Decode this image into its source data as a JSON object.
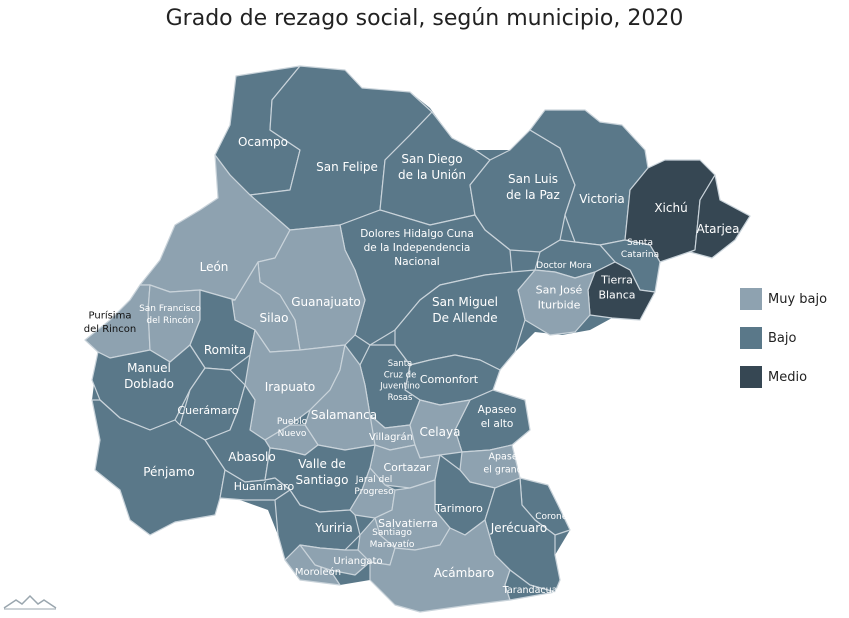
{
  "title": "Grado de rezago social, según municipio, 2020",
  "colors": {
    "muy_bajo": "#8ea2b0",
    "bajo": "#5a7889",
    "medio": "#364753",
    "border": "#c9d3da",
    "background": "#ffffff"
  },
  "legend": [
    {
      "label": "Muy bajo",
      "key": "muy_bajo"
    },
    {
      "label": "Bajo",
      "key": "bajo"
    },
    {
      "label": "Medio",
      "key": "medio"
    }
  ],
  "municipios": [
    {
      "id": "ocampo",
      "lines": [
        "Ocampo"
      ],
      "level": "bajo"
    },
    {
      "id": "san-felipe",
      "lines": [
        "San Felipe"
      ],
      "level": "bajo"
    },
    {
      "id": "san-diego",
      "lines": [
        "San Diego",
        "de la Unión"
      ],
      "level": "bajo"
    },
    {
      "id": "san-luis",
      "lines": [
        "San Luis",
        "de la Paz"
      ],
      "level": "bajo"
    },
    {
      "id": "victoria",
      "lines": [
        "Victoria"
      ],
      "level": "bajo"
    },
    {
      "id": "xichu",
      "lines": [
        "Xichú"
      ],
      "level": "medio"
    },
    {
      "id": "atarjea",
      "lines": [
        "Atarjea"
      ],
      "level": "medio"
    },
    {
      "id": "leon",
      "lines": [
        "León"
      ],
      "level": "muy_bajo"
    },
    {
      "id": "dolores",
      "lines": [
        "Dolores Hidalgo Cuna",
        "de la Independencia",
        "Nacional"
      ],
      "level": "bajo"
    },
    {
      "id": "santa-catarina",
      "lines": [
        "Santa",
        "Catarina"
      ],
      "level": "bajo"
    },
    {
      "id": "doctor-mora",
      "lines": [
        "Doctor Mora"
      ],
      "level": "bajo"
    },
    {
      "id": "tierra-blanca",
      "lines": [
        "Tierra",
        "Blanca"
      ],
      "level": "medio"
    },
    {
      "id": "san-jose",
      "lines": [
        "San José",
        "Iturbide"
      ],
      "level": "muy_bajo"
    },
    {
      "id": "purisima",
      "lines": [
        "Purísima",
        "del Rincon"
      ],
      "level": "muy_bajo"
    },
    {
      "id": "san-francisco",
      "lines": [
        "San Francisco",
        "del Rincón"
      ],
      "level": "muy_bajo"
    },
    {
      "id": "guanajuato",
      "lines": [
        "Guanajuato"
      ],
      "level": "muy_bajo"
    },
    {
      "id": "silao",
      "lines": [
        "Silao"
      ],
      "level": "muy_bajo"
    },
    {
      "id": "san-miguel",
      "lines": [
        "San Miguel",
        "De Allende"
      ],
      "level": "bajo"
    },
    {
      "id": "romita",
      "lines": [
        "Romita"
      ],
      "level": "bajo"
    },
    {
      "id": "manuel-doblado",
      "lines": [
        "Manuel",
        "Doblado"
      ],
      "level": "bajo"
    },
    {
      "id": "irapuato",
      "lines": [
        "Irapuato"
      ],
      "level": "muy_bajo"
    },
    {
      "id": "comonfort",
      "lines": [
        "Comonfort"
      ],
      "level": "bajo"
    },
    {
      "id": "santa-cruz",
      "lines": [
        "Santa",
        "Cruz de",
        "Juventino",
        "Rosas"
      ],
      "level": "bajo"
    },
    {
      "id": "cueramaro",
      "lines": [
        "Cuerámaro"
      ],
      "level": "bajo"
    },
    {
      "id": "salamanca",
      "lines": [
        "Salamanca"
      ],
      "level": "muy_bajo"
    },
    {
      "id": "apaseo-alto",
      "lines": [
        "Apaseo",
        "el alto"
      ],
      "level": "bajo"
    },
    {
      "id": "pueblo-nuevo",
      "lines": [
        "Pueblo",
        "Nuevo"
      ],
      "level": "muy_bajo"
    },
    {
      "id": "villagran",
      "lines": [
        "Villagrán"
      ],
      "level": "muy_bajo"
    },
    {
      "id": "celaya",
      "lines": [
        "Celaya"
      ],
      "level": "muy_bajo"
    },
    {
      "id": "abasolo",
      "lines": [
        "Abasolo"
      ],
      "level": "bajo"
    },
    {
      "id": "penjamo",
      "lines": [
        "Pénjamo"
      ],
      "level": "bajo"
    },
    {
      "id": "apaseo-grande",
      "lines": [
        "Apaseo",
        "el grande"
      ],
      "level": "muy_bajo"
    },
    {
      "id": "cortazar",
      "lines": [
        "Cortazar"
      ],
      "level": "muy_bajo"
    },
    {
      "id": "valle",
      "lines": [
        "Valle de",
        "Santiago"
      ],
      "level": "bajo"
    },
    {
      "id": "jaral",
      "lines": [
        "Jaral del",
        "Progreso"
      ],
      "level": "muy_bajo"
    },
    {
      "id": "huanimaro",
      "lines": [
        "Huanímaro"
      ],
      "level": "bajo"
    },
    {
      "id": "tarimoro",
      "lines": [
        "Tarimoro"
      ],
      "level": "bajo"
    },
    {
      "id": "coroneo",
      "lines": [
        "Coroneo"
      ],
      "level": "bajo"
    },
    {
      "id": "jerecuaro",
      "lines": [
        "Jerécuaro"
      ],
      "level": "bajo"
    },
    {
      "id": "yuriria",
      "lines": [
        "Yuriria"
      ],
      "level": "bajo"
    },
    {
      "id": "salvatierra",
      "lines": [
        "Salvatierra"
      ],
      "level": "muy_bajo"
    },
    {
      "id": "santiago-maravatio",
      "lines": [
        "Santiago",
        "Maravatío"
      ],
      "level": "muy_bajo"
    },
    {
      "id": "uriangato",
      "lines": [
        "Uriangato"
      ],
      "level": "muy_bajo"
    },
    {
      "id": "moroleon",
      "lines": [
        "Moroleón"
      ],
      "level": "muy_bajo"
    },
    {
      "id": "acambaro",
      "lines": [
        "Acámbaro"
      ],
      "level": "muy_bajo"
    },
    {
      "id": "tarandacuao",
      "lines": [
        "Tarandacuao"
      ],
      "level": "bajo"
    }
  ]
}
